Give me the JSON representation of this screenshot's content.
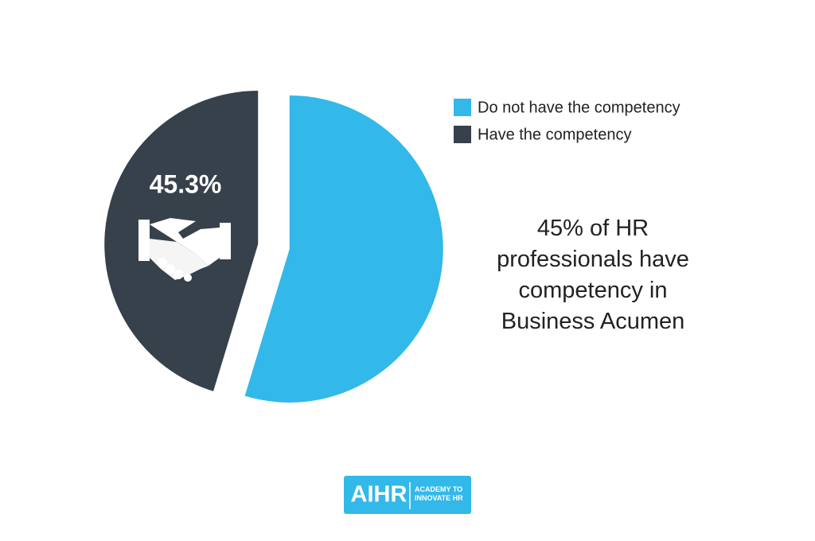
{
  "chart_data": {
    "type": "pie",
    "categories": [
      "Do not have the competency",
      "Have the competency"
    ],
    "values": [
      54.7,
      45.3
    ],
    "value_labels": [
      null,
      "45.3%"
    ],
    "colors": [
      "#33b8ea",
      "#37414b"
    ],
    "legend": "top-right",
    "annotation": "45% of HR professionals have competency in Business Acumen",
    "logo": {
      "name": "AIHR",
      "tagline": "ACADEMY TO INNOVATE HR"
    }
  }
}
